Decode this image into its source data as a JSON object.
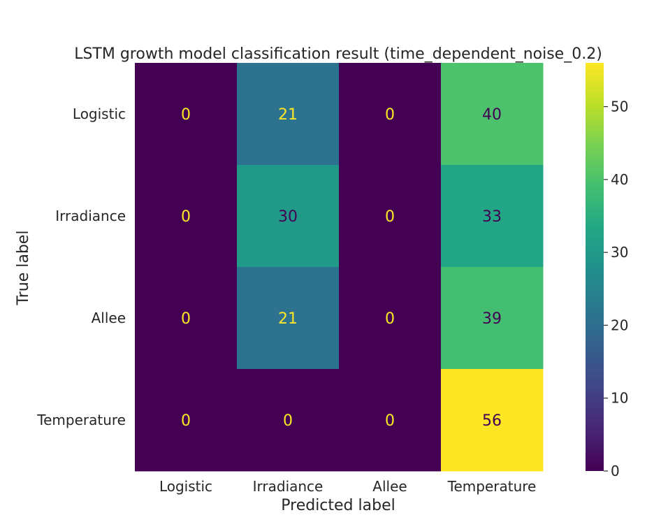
{
  "chart_data": {
    "type": "heatmap",
    "title": "LSTM growth model classification result (time_dependent_noise_0.2)",
    "xlabel": "Predicted label",
    "ylabel": "True label",
    "x_categories": [
      "Logistic",
      "Irradiance",
      "Allee",
      "Temperature"
    ],
    "y_categories": [
      "Logistic",
      "Irradiance",
      "Allee",
      "Temperature"
    ],
    "values": [
      [
        0,
        21,
        0,
        40
      ],
      [
        0,
        30,
        0,
        33
      ],
      [
        0,
        21,
        0,
        39
      ],
      [
        0,
        0,
        0,
        56
      ]
    ],
    "colormap": "viridis",
    "colorbar": {
      "range": [
        0,
        56
      ],
      "ticks": [
        0,
        10,
        20,
        30,
        40,
        50
      ]
    },
    "text_color_dark_cells": "#fde725",
    "text_color_light_cells": "#440154"
  }
}
